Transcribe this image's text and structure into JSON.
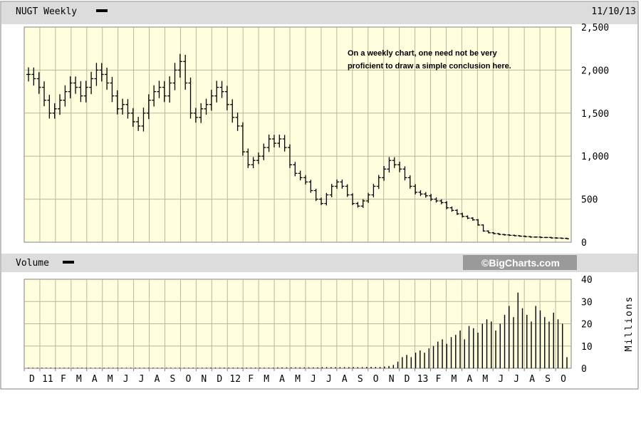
{
  "price_panel": {
    "title": "NUGT Weekly",
    "date": "11/10/13",
    "annotation_lines": [
      "On a weekly chart, one need not be very",
      "proficient to draw a simple conclusion here."
    ]
  },
  "volume_panel": {
    "title": "Volume",
    "brand": "©BigCharts.com",
    "unit_label": "Millions"
  },
  "colors": {
    "plot_bg": "#ffffe0",
    "grid": "#b8b898",
    "header_bg": "#dcdcdc",
    "bars": "#000000"
  },
  "chart_data": [
    {
      "type": "bar",
      "subtype": "ohlc",
      "name": "price",
      "ylim": [
        0,
        2500
      ],
      "yticks": [
        "2,500",
        "2,000",
        "1,500",
        "1,000",
        "500",
        "0"
      ],
      "ytick_values": [
        2500,
        2000,
        1500,
        1000,
        500,
        0
      ],
      "x_month_labels": [
        "D",
        "11",
        "F",
        "M",
        "A",
        "M",
        "J",
        "J",
        "A",
        "S",
        "O",
        "N",
        "D",
        "12",
        "F",
        "M",
        "A",
        "M",
        "J",
        "J",
        "A",
        "S",
        "O",
        "N",
        "D",
        "13",
        "F",
        "M",
        "A",
        "M",
        "J",
        "J",
        "A",
        "S",
        "O"
      ],
      "approx_weekly_closes": [
        1950,
        1900,
        1800,
        1650,
        1500,
        1550,
        1650,
        1750,
        1850,
        1800,
        1700,
        1800,
        1900,
        2000,
        1950,
        1850,
        1700,
        1550,
        1600,
        1500,
        1400,
        1350,
        1500,
        1650,
        1750,
        1800,
        1700,
        1850,
        2000,
        2100,
        1850,
        1500,
        1450,
        1550,
        1600,
        1700,
        1800,
        1750,
        1600,
        1450,
        1350,
        1050,
        900,
        950,
        1000,
        1100,
        1200,
        1150,
        1200,
        1100,
        900,
        800,
        750,
        700,
        600,
        500,
        450,
        550,
        650,
        700,
        650,
        550,
        450,
        420,
        480,
        550,
        650,
        750,
        850,
        950,
        900,
        850,
        750,
        650,
        580,
        560,
        540,
        500,
        480,
        460,
        400,
        370,
        330,
        300,
        280,
        260,
        200,
        130,
        110,
        100,
        90,
        85,
        80,
        75,
        70,
        65,
        60,
        60,
        55,
        55,
        50,
        48,
        45,
        40
      ]
    },
    {
      "type": "bar",
      "name": "volume",
      "ylim": [
        0,
        40
      ],
      "yticks": [
        "40",
        "30",
        "20",
        "10",
        "0"
      ],
      "ytick_values": [
        40,
        30,
        20,
        10,
        0
      ],
      "values": [
        0.2,
        0.2,
        0.2,
        0.2,
        0.2,
        0.2,
        0.2,
        0.2,
        0.2,
        0.2,
        0.2,
        0.2,
        0.2,
        0.2,
        0.2,
        0.2,
        0.2,
        0.2,
        0.2,
        0.2,
        0.2,
        0.2,
        0.2,
        0.2,
        0.2,
        0.2,
        0.2,
        0.2,
        0.2,
        0.2,
        0.2,
        0.2,
        0.2,
        0.2,
        0.2,
        0.2,
        0.2,
        0.2,
        0.2,
        0.2,
        0.3,
        0.3,
        0.3,
        0.3,
        0.3,
        0.3,
        0.3,
        0.3,
        0.3,
        0.3,
        0.3,
        0.3,
        0.3,
        0.3,
        0.3,
        0.3,
        0.4,
        0.4,
        0.4,
        0.4,
        0.4,
        0.4,
        0.4,
        0.4,
        0.4,
        0.4,
        0.5,
        0.5,
        0.5,
        0.5,
        0.5,
        0.5,
        0.5,
        0.5,
        0.5,
        0.5,
        0.6,
        0.6,
        0.6,
        0.6,
        0.8,
        1.0,
        1.5,
        3,
        5,
        6,
        5,
        7,
        8,
        7,
        9,
        10,
        12,
        13,
        11,
        14,
        15,
        17,
        13,
        19,
        18,
        16,
        20,
        22,
        21,
        17,
        20,
        24,
        28,
        23,
        34,
        27,
        24,
        21,
        28,
        26,
        23,
        21,
        25,
        22,
        20,
        5
      ]
    }
  ]
}
